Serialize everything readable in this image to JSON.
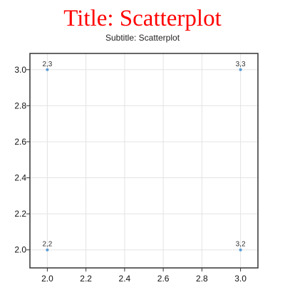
{
  "chart_data": {
    "type": "scatter",
    "title": "Title: Scatterplot",
    "subtitle": "Subtitle: Scatterplot",
    "xlabel": "",
    "ylabel": "",
    "xlim": [
      1.91,
      3.09
    ],
    "ylim": [
      1.9,
      3.09
    ],
    "x_ticks": [
      2.0,
      2.2,
      2.4,
      2.6,
      2.8,
      3.0
    ],
    "x_tick_labels": [
      "2.0",
      "2.2",
      "2.4",
      "2.6",
      "2.8",
      "3.0"
    ],
    "y_ticks": [
      2.0,
      2.2,
      2.4,
      2.6,
      2.8,
      3.0
    ],
    "y_tick_labels": [
      "2.0",
      "2.2",
      "2.4",
      "2.6",
      "2.8",
      "3.0"
    ],
    "grid": true,
    "legend": "none",
    "series": [
      {
        "points": [
          {
            "x": 2,
            "y": 3,
            "label": "2,3"
          },
          {
            "x": 3,
            "y": 3,
            "label": "3,3"
          },
          {
            "x": 2,
            "y": 2,
            "label": "2,2"
          },
          {
            "x": 3,
            "y": 2,
            "label": "3,2"
          }
        ]
      }
    ],
    "colors": {
      "title": "#ff0000",
      "point": "#5b9bd5",
      "grid": "#e3e3e3",
      "frame": "#333333"
    }
  }
}
